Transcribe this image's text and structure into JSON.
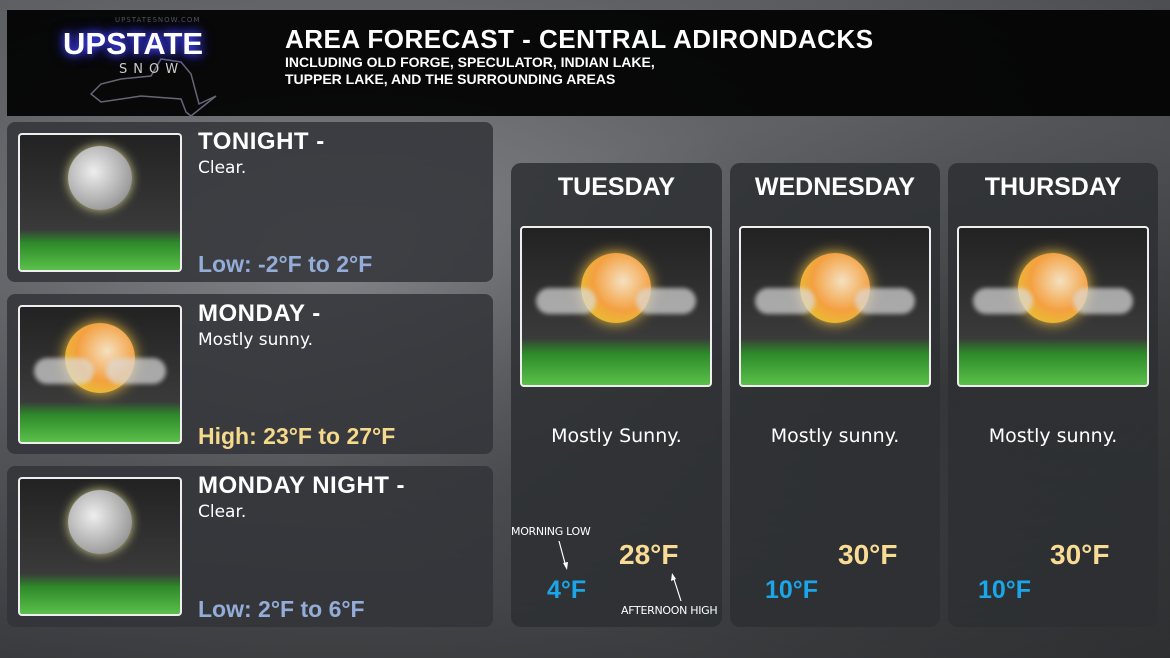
{
  "header": {
    "logo_site": "UPSTATESNOW.COM",
    "logo_main": "UPSTATE",
    "logo_sub": "SNOW",
    "title": "AREA FORECAST - CENTRAL ADIRONDACKS",
    "subtitle_line1": "INCLUDING OLD FORGE, SPECULATOR, INDIAN LAKE,",
    "subtitle_line2": "TUPPER LAKE, AND THE SURROUNDING AREAS"
  },
  "periods": [
    {
      "title": "TONIGHT -",
      "desc": "Clear.",
      "temp": "Low:  -2°F to 2°F",
      "icon": "moon-icon"
    },
    {
      "title": "MONDAY -",
      "desc": "Mostly sunny.",
      "temp": "High:  23°F to 27°F",
      "icon": "partly-sunny-icon"
    },
    {
      "title": "MONDAY NIGHT -",
      "desc": "Clear.",
      "temp": "Low:  2°F to 6°F",
      "icon": "moon-icon"
    }
  ],
  "days": [
    {
      "day": "TUESDAY",
      "desc": "Mostly Sunny.",
      "high": "28°F",
      "low": "4°F",
      "icon": "partly-sunny-icon"
    },
    {
      "day": "WEDNESDAY",
      "desc": "Mostly sunny.",
      "high": "30°F",
      "low": "10°F",
      "icon": "partly-sunny-icon"
    },
    {
      "day": "THURSDAY",
      "desc": "Mostly sunny.",
      "high": "30°F",
      "low": "10°F",
      "icon": "partly-sunny-icon"
    }
  ],
  "notes": {
    "morning_low": "MORNING LOW",
    "afternoon_high": "AFTERNOON HIGH"
  },
  "colors": {
    "low_range": "#94acd8",
    "high_range": "#f5d98c",
    "day_high": "#f8dc94",
    "day_low": "#1aa6e8"
  }
}
